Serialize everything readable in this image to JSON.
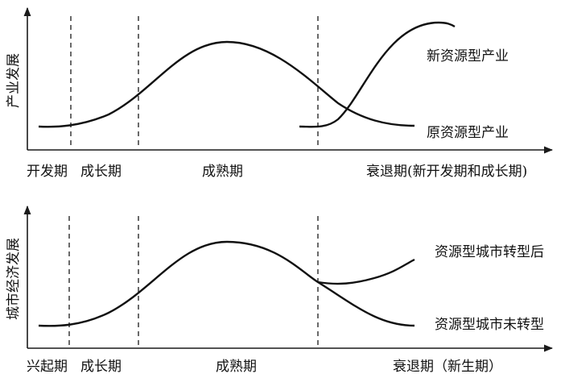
{
  "top_panel": {
    "y_axis_label": "产业发展",
    "stages": [
      "开发期",
      "成长期",
      "成熟期",
      "衰退期(新开发期和成长期)"
    ],
    "curve_labels": {
      "new": "新资源型产业",
      "old": "原资源型产业"
    }
  },
  "bottom_panel": {
    "y_axis_label": "城市经济发展",
    "stages": [
      "兴起期",
      "成长期",
      "成熟期",
      "衰退期（新生期）"
    ],
    "curve_labels": {
      "transformed": "资源型城市转型后",
      "untransformed": "资源型城市未转型"
    }
  }
}
